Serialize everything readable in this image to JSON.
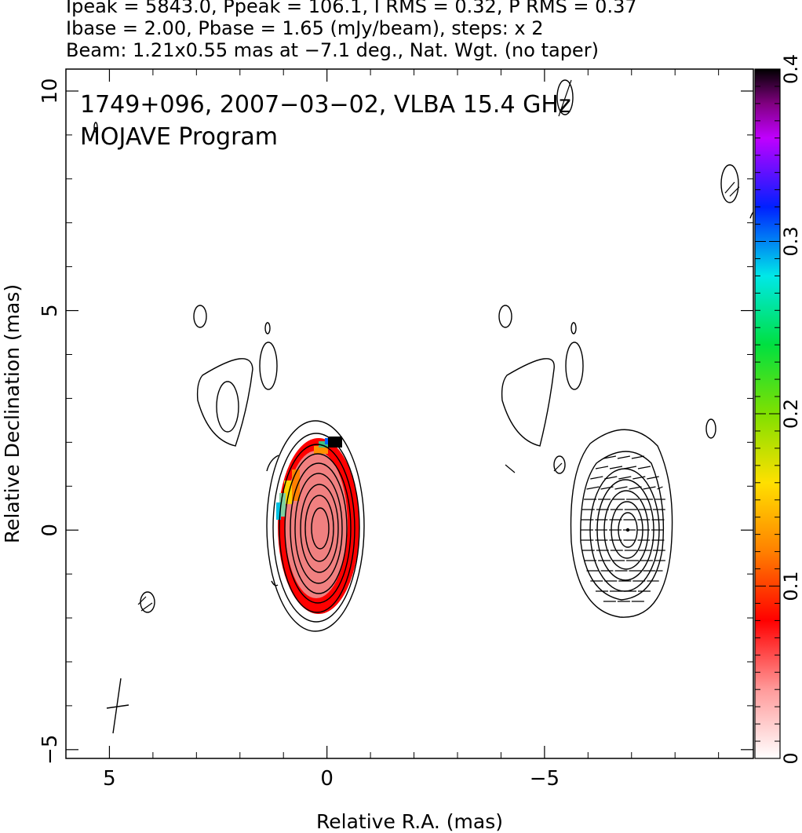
{
  "header": {
    "line1": "Ipeak = 5843.0, Ppeak = 106.1, I RMS = 0.32, P RMS = 0.37",
    "line2": "Ibase = 2.00, Pbase = 1.65 (mJy/beam), steps: x 2",
    "line3": "Beam: 1.21x0.55 mas at −7.1 deg., Nat. Wgt. (no taper)"
  },
  "annotation": {
    "line1": "1749+096, 2007−03−02, VLBA 15.4 GHz",
    "line2": "MOJAVE Program"
  },
  "colorbar": {
    "min": 0,
    "max": 0.4,
    "tick_labels": [
      "0",
      "0.1",
      "0.2",
      "0.3",
      "0.4"
    ]
  },
  "chart_data": {
    "type": "heatmap",
    "title": "1749+096, 2007−03−02, VLBA 15.4 GHz",
    "xlabel": "Relative R.A. (mas)",
    "ylabel": "Relative Declination (mas)",
    "xlim": [
      6.0,
      -9.8
    ],
    "ylim": [
      -5.2,
      10.5
    ],
    "x_ticks": [
      5,
      0,
      -5
    ],
    "y_ticks": [
      -5,
      0,
      5,
      10
    ],
    "x_tick_labels": [
      "5",
      "0",
      "−5"
    ],
    "y_tick_labels": [
      "−5",
      "0",
      "5",
      "10"
    ],
    "panels": [
      {
        "name": "total intensity + fractional polarization",
        "center_ra": 0,
        "center_dec": 0
      },
      {
        "name": "total intensity + EVPA",
        "center_ra": -7,
        "center_dec": 0
      }
    ],
    "stokes_i_peak_mJy_per_beam": 5843.0,
    "polarized_peak_mJy_per_beam": 106.1,
    "contour_base_mJy_per_beam": 2.0,
    "contour_step_factor": 2,
    "beam_major_mas": 1.21,
    "beam_minor_mas": 0.55,
    "beam_pa_deg": -7.1,
    "fractional_polarization_range": [
      0,
      0.4
    ],
    "grid": false
  }
}
